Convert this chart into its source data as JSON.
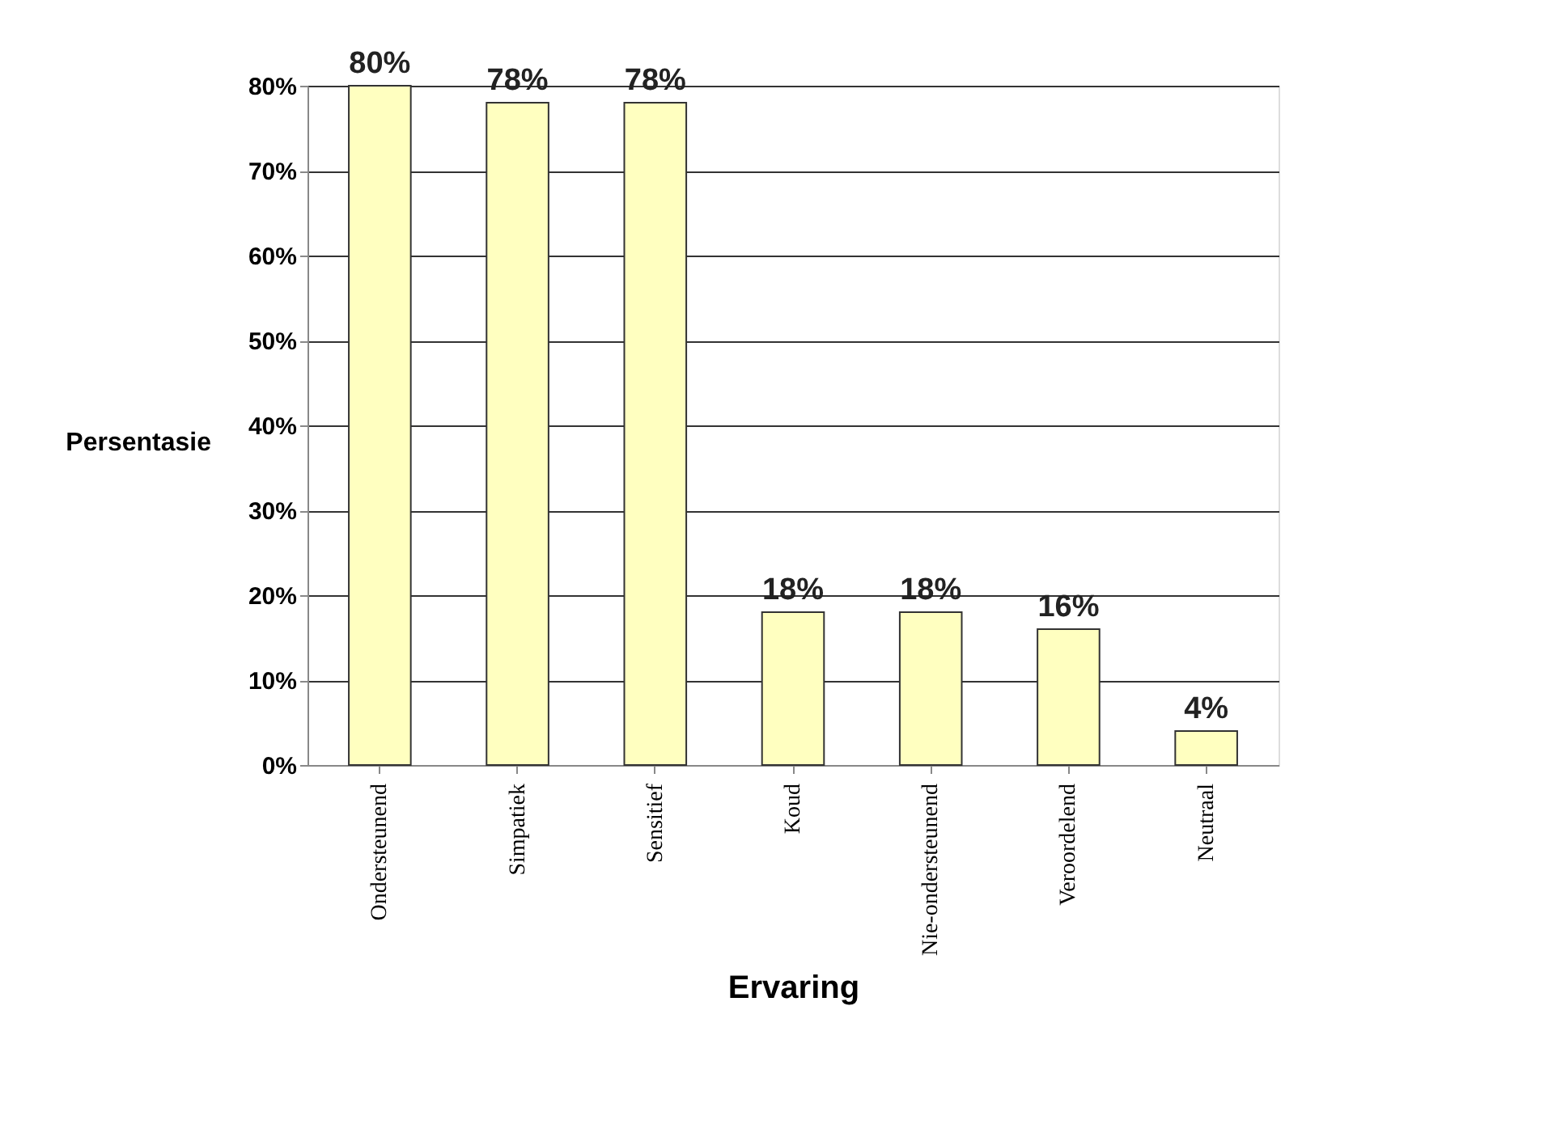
{
  "chart_data": {
    "type": "bar",
    "categories": [
      "Ondersteunend",
      "Simpatiek",
      "Sensitief",
      "Koud",
      "Nie-ondersteunend",
      "Veroordelend",
      "Neutraal"
    ],
    "values": [
      80,
      78,
      78,
      18,
      18,
      16,
      4
    ],
    "value_labels": [
      "80%",
      "78%",
      "78%",
      "18%",
      "18%",
      "16%",
      "4%"
    ],
    "color": "#ffffc0",
    "xlabel": "Ervaring",
    "ylabel": "Persentasie",
    "ylim": [
      0,
      80
    ],
    "yticks": [
      {
        "value": 0,
        "label": "0%"
      },
      {
        "value": 10,
        "label": "10%"
      },
      {
        "value": 20,
        "label": "20%"
      },
      {
        "value": 30,
        "label": "30%"
      },
      {
        "value": 40,
        "label": "40%"
      },
      {
        "value": 50,
        "label": "50%"
      },
      {
        "value": 60,
        "label": "60%"
      },
      {
        "value": 70,
        "label": "70%"
      },
      {
        "value": 80,
        "label": "80%"
      }
    ],
    "grid": "y"
  }
}
